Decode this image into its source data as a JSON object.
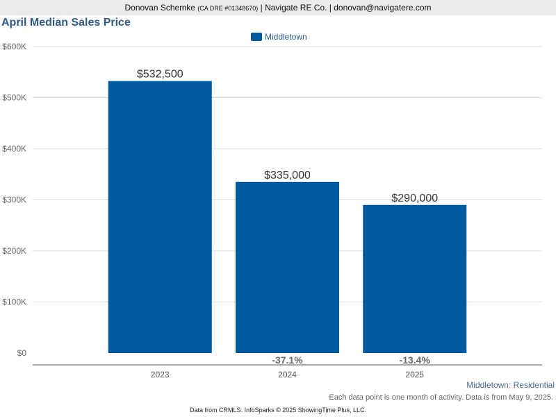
{
  "header": {
    "agent_name": "Donovan Schemke",
    "license": "(CA DRE #01348670)",
    "rest": "| Navigate RE Co. | donovan@navigatere.com"
  },
  "chart_data": {
    "type": "bar",
    "title": "April Median Sales Price",
    "categories": [
      "2023",
      "2024",
      "2025"
    ],
    "series": [
      {
        "name": "Middletown",
        "values": [
          532500,
          335000,
          290000
        ],
        "color": "#005aa0"
      }
    ],
    "value_labels": [
      "$532,500",
      "$335,000",
      "$290,000"
    ],
    "change_labels": [
      "",
      "-37.1%",
      "-13.4%"
    ],
    "ylim": [
      0,
      600000
    ],
    "yticks": [
      0,
      100000,
      200000,
      300000,
      400000,
      500000,
      600000
    ],
    "ytick_labels": [
      "$0",
      "$100K",
      "$200K",
      "$300K",
      "$400K",
      "$500K",
      "$600K"
    ],
    "grid": true,
    "legend_position": "top-center"
  },
  "footer": {
    "region": "Middletown: Residential",
    "note": "Each data point is one month of activity. Data is from May 9, 2025.",
    "credit": "Data from CRMLS. InfoSparks © 2025 ShowingTime Plus, LLC."
  }
}
